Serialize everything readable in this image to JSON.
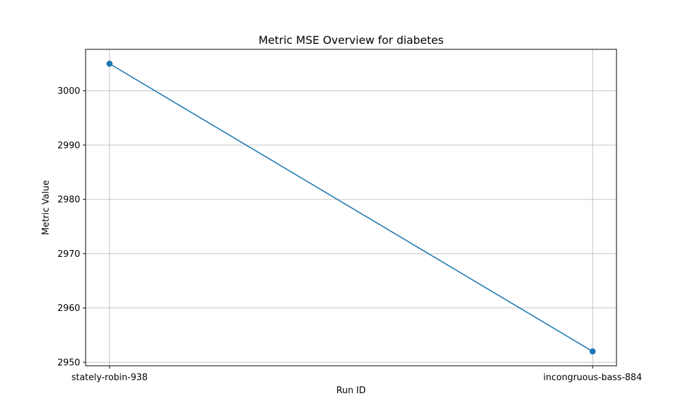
{
  "chart_data": {
    "type": "line",
    "title": "Metric MSE Overview for diabetes",
    "xlabel": "Run ID",
    "ylabel": "Metric Value",
    "categories": [
      "stately-robin-938",
      "incongruous-bass-884"
    ],
    "series": [
      {
        "values": [
          3005,
          2952
        ],
        "color": "#1f77b4",
        "marker": "circle"
      }
    ],
    "yticks": [
      2950,
      2960,
      2970,
      2980,
      2990,
      3000
    ],
    "ylim": [
      2949.35,
      3007.65
    ],
    "grid": true,
    "legend": "none"
  }
}
